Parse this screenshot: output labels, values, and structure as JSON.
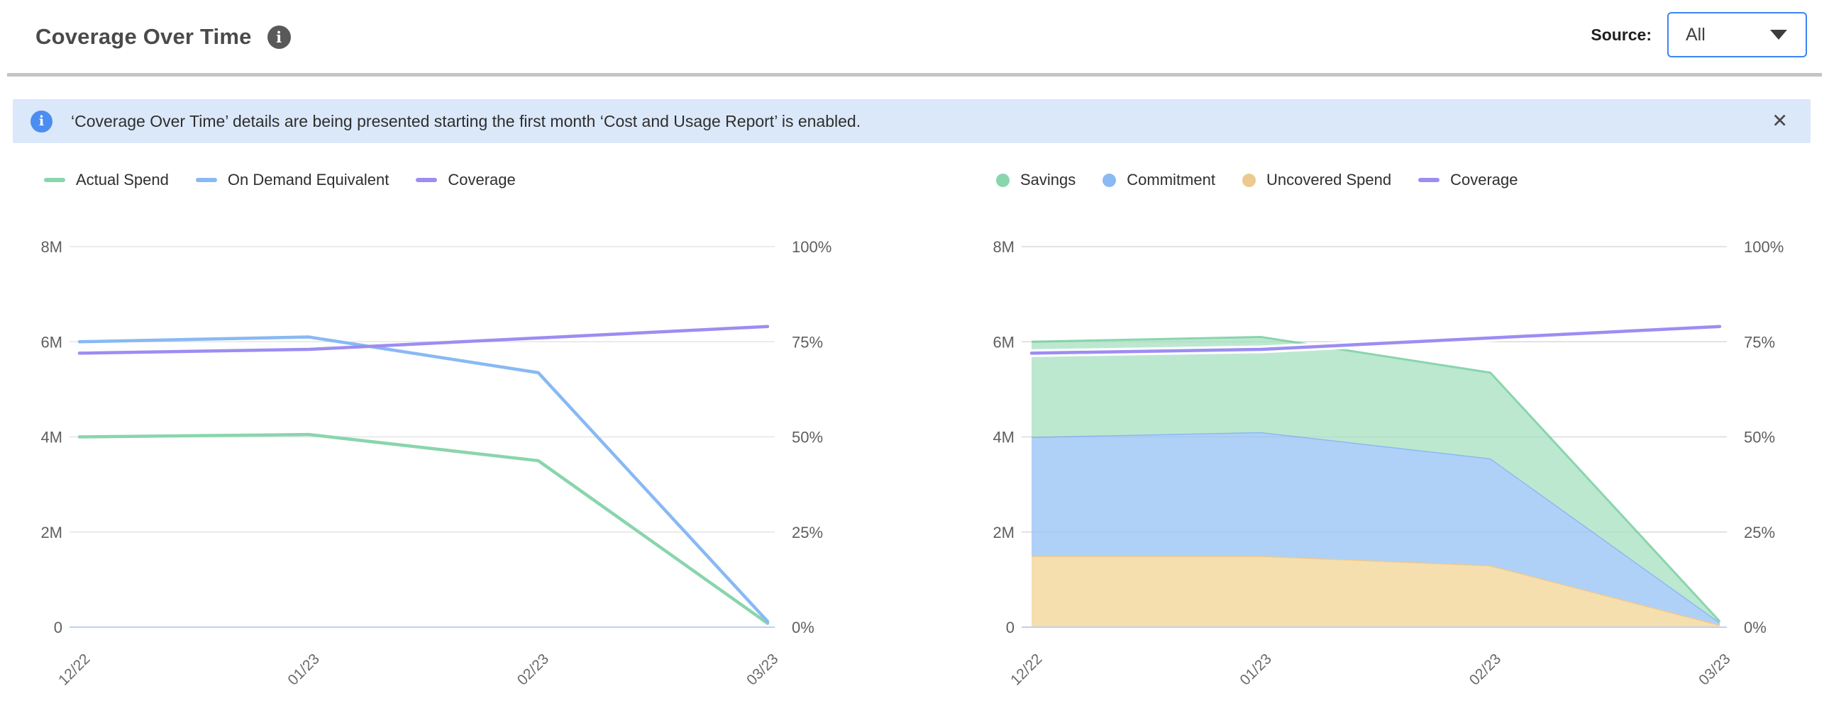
{
  "header": {
    "title": "Coverage Over Time",
    "info_icon_glyph": "i",
    "source_label": "Source:",
    "source_value": "All"
  },
  "banner": {
    "icon_glyph": "i",
    "text": "‘Coverage Over Time’ details are being presented starting the first month ‘Cost and Usage Report’ is enabled.",
    "close_glyph": "✕"
  },
  "colors": {
    "accent_blue": "#3d85f4",
    "banner_bg": "#dbe8fa",
    "banner_icon": "#4c8df2",
    "title_icon": "#595959",
    "grid": "#e5e5e5",
    "baseline": "#bed0f2",
    "axis_text": "#5f5f5f",
    "green": "#89d5ad",
    "blue": "#88b9f3",
    "purple": "#9c8df2",
    "orange": "#ecc98e"
  },
  "chart_data": [
    {
      "id": "spend-lines",
      "type": "line",
      "title": "",
      "categories": [
        "12/22",
        "01/23",
        "02/23",
        "03/23"
      ],
      "y_left": {
        "ticks": [
          "8M",
          "6M",
          "4M",
          "2M",
          "0"
        ],
        "min": 0,
        "max": 8,
        "unit": "USD millions"
      },
      "y_right": {
        "ticks": [
          "100%",
          "75%",
          "50%",
          "25%",
          "0%"
        ],
        "min": 0,
        "max": 100,
        "unit": "percent"
      },
      "grid": true,
      "legend_position": "top-left",
      "series": [
        {
          "name": "Actual Spend",
          "type": "line",
          "axis": "left",
          "swatch": "line",
          "color": "#89d5ad",
          "values": [
            4.0,
            4.05,
            3.5,
            0.08
          ]
        },
        {
          "name": "On Demand Equivalent",
          "type": "line",
          "axis": "left",
          "swatch": "line",
          "color": "#88b9f3",
          "values": [
            6.0,
            6.1,
            5.35,
            0.12
          ]
        },
        {
          "name": "Coverage",
          "type": "line",
          "axis": "right",
          "swatch": "line",
          "color": "#9c8df2",
          "values": [
            72,
            73,
            76,
            79
          ]
        }
      ]
    },
    {
      "id": "coverage-breakdown",
      "type": "area",
      "title": "",
      "stacked": true,
      "categories": [
        "12/22",
        "01/23",
        "02/23",
        "03/23"
      ],
      "y_left": {
        "ticks": [
          "8M",
          "6M",
          "4M",
          "2M",
          "0"
        ],
        "min": 0,
        "max": 8,
        "unit": "USD millions"
      },
      "y_right": {
        "ticks": [
          "100%",
          "75%",
          "50%",
          "25%",
          "0%"
        ],
        "min": 0,
        "max": 100,
        "unit": "percent"
      },
      "grid": true,
      "legend_position": "top-left",
      "series": [
        {
          "name": "Savings",
          "type": "area",
          "stack_order": 3,
          "swatch": "circle",
          "color": "#89d5ad",
          "fill": "#bce8d0",
          "values": [
            2.0,
            2.0,
            1.8,
            0.02
          ]
        },
        {
          "name": "Commitment",
          "type": "area",
          "stack_order": 2,
          "swatch": "circle",
          "color": "#8bb9f3",
          "fill": "#afd1f8",
          "values": [
            2.5,
            2.6,
            2.25,
            0.05
          ]
        },
        {
          "name": "Uncovered Spend",
          "type": "area",
          "stack_order": 1,
          "swatch": "circle",
          "color": "#ecc98e",
          "fill": "#f5dfae",
          "values": [
            1.5,
            1.5,
            1.3,
            0.05
          ]
        },
        {
          "name": "Coverage",
          "type": "line",
          "axis": "right",
          "swatch": "line",
          "casing": true,
          "color": "#9c8df2",
          "values": [
            72,
            73,
            76,
            79
          ]
        }
      ]
    }
  ]
}
